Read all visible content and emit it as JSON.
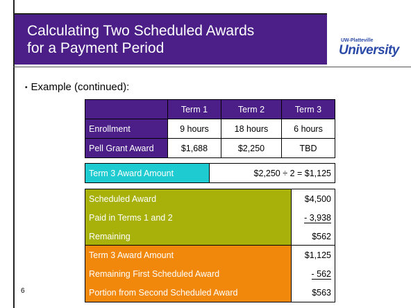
{
  "header": {
    "title_lines": [
      "Calculating Two Scheduled Awards",
      "for a Payment Period"
    ],
    "logo_small": "UW-Platteville",
    "logo": "University"
  },
  "bullet": "Example (continued):",
  "table": {
    "columns": [
      "Term 1",
      "Term 2",
      "Term 3"
    ],
    "rows": [
      [
        "Enrollment",
        "9 hours",
        "18 hours",
        "6 hours"
      ],
      [
        "Pell Grant Award",
        "$1,688",
        "$2,250",
        "TBD"
      ]
    ]
  },
  "term3": [
    "Term 3 Award Amount",
    "$2,250 ÷ 2 = $1,125"
  ],
  "scheduled": [
    [
      "Scheduled Award",
      "$4,500"
    ],
    [
      "Paid in Terms 1 and 2",
      "- 3,938"
    ],
    [
      "Remaining",
      "$562"
    ]
  ],
  "portion": [
    [
      "Term 3 Award Amount",
      "$1,125"
    ],
    [
      "Remaining First Scheduled Award",
      "- 562"
    ],
    [
      "Portion from Second Scheduled Award",
      "$563"
    ]
  ],
  "page_number": "6"
}
